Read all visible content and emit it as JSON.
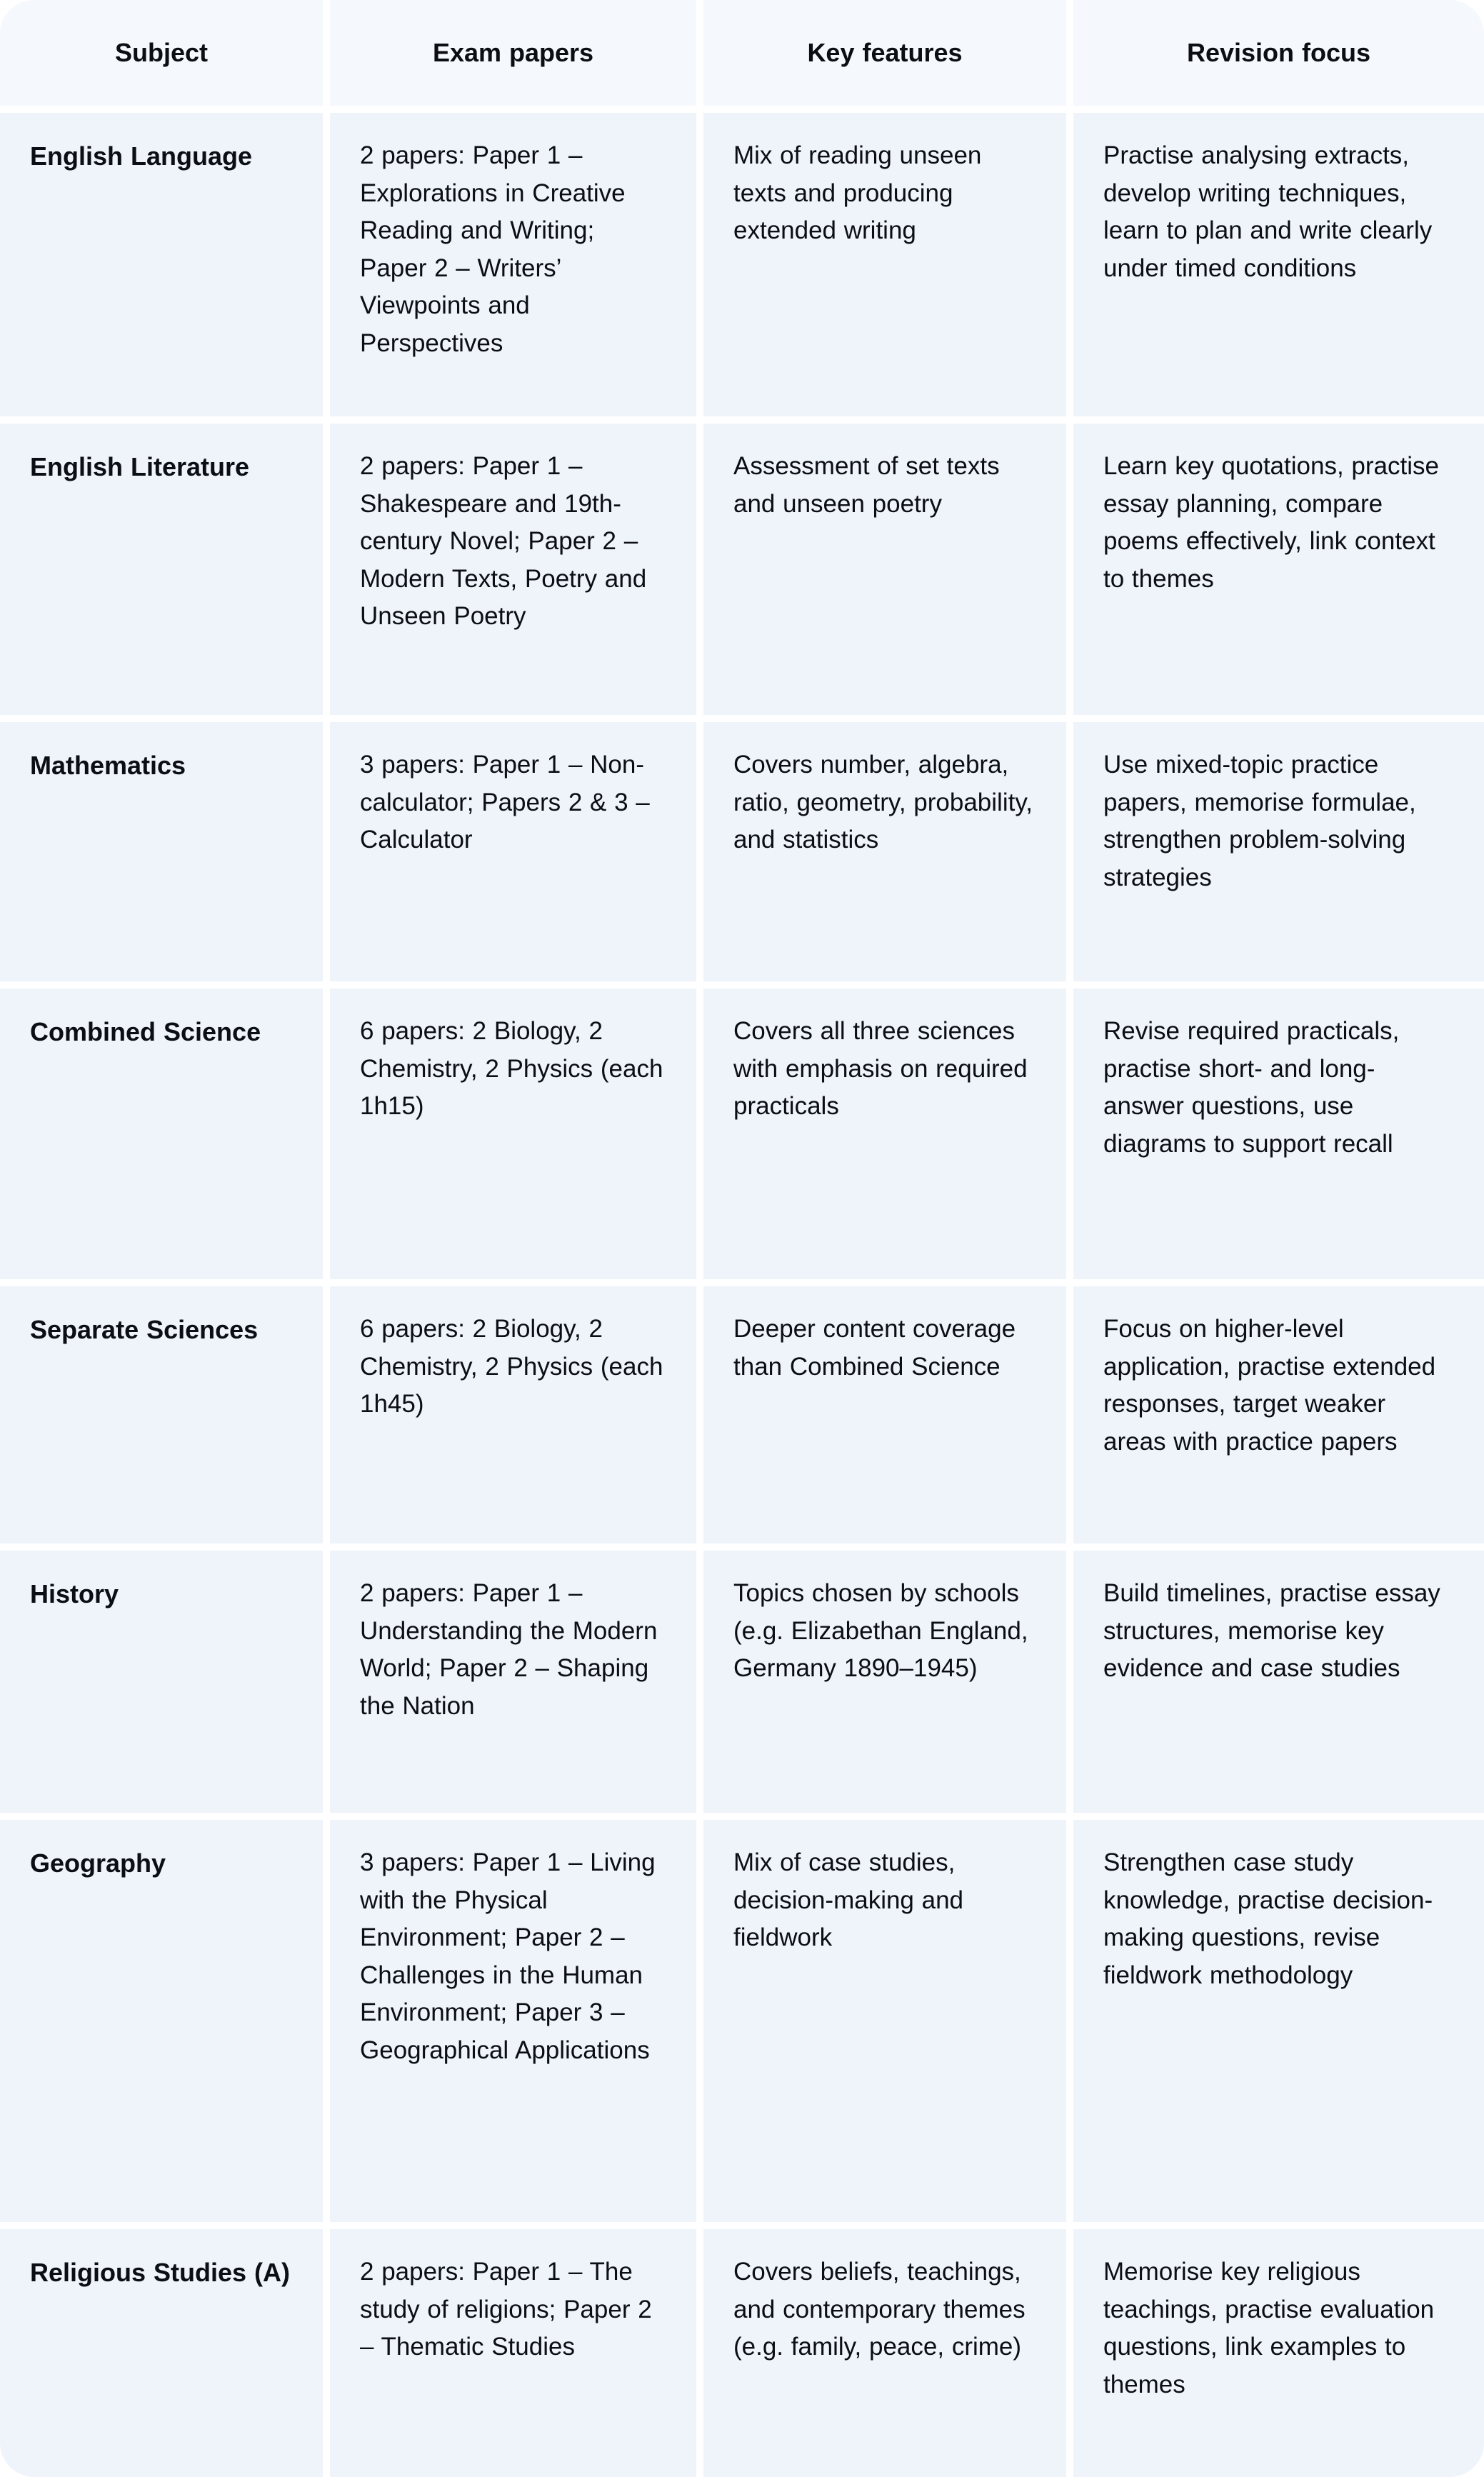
{
  "table": {
    "columns": [
      "Subject",
      "Exam papers",
      "Key features",
      "Revision focus"
    ],
    "rows": [
      {
        "subject": "English Language",
        "exam_papers": "2 papers: Paper 1 – Explorations in Creative Reading and Writing; Paper 2 – Writers’ Viewpoints and Perspectives",
        "key_features": "Mix of reading unseen texts and producing extended writing",
        "revision_focus": "Practise analysing extracts, develop writing techniques, learn to plan and write clearly under timed conditions"
      },
      {
        "subject": "English Literature",
        "exam_papers": "2 papers: Paper 1 – Shakespeare and 19th-century Novel; Paper 2 – Modern Texts, Poetry and Unseen Poetry",
        "key_features": "Assessment of set texts and unseen poetry",
        "revision_focus": "Learn key quotations, practise essay planning, compare poems effectively, link context to themes"
      },
      {
        "subject": "Mathematics",
        "exam_papers": "3 papers: Paper 1 – Non-calculator; Papers 2 & 3 – Calculator",
        "key_features": "Covers number, algebra, ratio, geometry, probability, and statistics",
        "revision_focus": "Use mixed-topic practice papers, memorise formulae, strengthen problem-solving strategies"
      },
      {
        "subject": "Combined Science",
        "exam_papers": "6 papers: 2 Biology, 2 Chemistry, 2 Physics (each 1h15)",
        "key_features": "Covers all three sciences with emphasis on required practicals",
        "revision_focus": "Revise required practicals, practise short- and long-answer questions, use diagrams to support recall"
      },
      {
        "subject": "Separate Sciences",
        "exam_papers": "6 papers: 2 Biology, 2 Chemistry, 2 Physics (each 1h45)",
        "key_features": "Deeper content coverage than Combined Science",
        "revision_focus": "Focus on higher-level application, practise extended responses, target weaker areas with practice papers"
      },
      {
        "subject": "History",
        "exam_papers": "2 papers: Paper 1 – Understanding the Modern World; Paper 2 – Shaping the Nation",
        "key_features": "Topics chosen by schools (e.g. Elizabethan England, Germany 1890–1945)",
        "revision_focus": "Build timelines, practise essay structures, memorise key evidence and case studies"
      },
      {
        "subject": "Geography",
        "exam_papers": "3 papers: Paper 1 – Living with the Physical Environment; Paper 2 – Challenges in the Human Environment; Paper 3 – Geographical Applications",
        "key_features": "Mix of case studies, decision-making and fieldwork",
        "revision_focus": "Strengthen case study knowledge, practise decision-making questions, revise fieldwork methodology"
      },
      {
        "subject": "Religious Studies (A)",
        "exam_papers": "2 papers: Paper 1 – The study of religions; Paper 2 – Thematic Studies",
        "key_features": "Covers beliefs, teachings, and contemporary themes (e.g. family, peace, crime)",
        "revision_focus": "Memorise key religious teachings, practise evaluation questions, link examples to themes"
      }
    ]
  },
  "colors": {
    "cell_background": "#eff3fa",
    "header_background": "#f5f8fc",
    "gap": "#ffffff",
    "text": "#0b0e13"
  }
}
